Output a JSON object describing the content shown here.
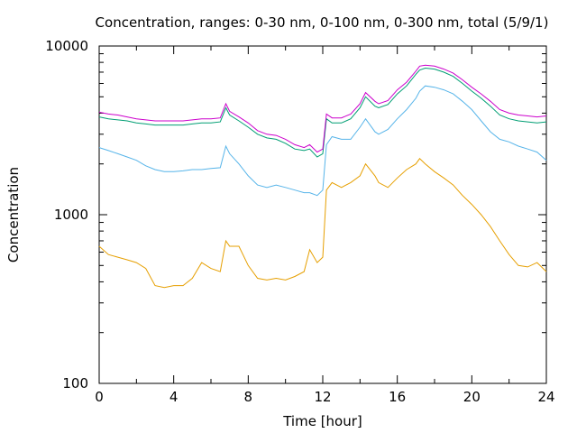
{
  "chart_data": {
    "type": "line",
    "title": "Concentration, ranges: 0-30 nm, 0-100 nm, 0-300 nm, total (5/9/1)",
    "xlabel": "Time [hour]",
    "ylabel": "Concentration",
    "xlim": [
      0,
      24
    ],
    "ylim": [
      100,
      10000
    ],
    "yscale": "log",
    "grid": false,
    "legend": "none",
    "x_ticks": [
      "0",
      "4",
      "8",
      "12",
      "16",
      "20",
      "24"
    ],
    "y_ticks": [
      "100",
      "1000",
      "10000"
    ],
    "x": [
      0,
      0.5,
      1,
      1.5,
      2,
      2.5,
      3,
      3.5,
      4,
      4.5,
      5,
      5.5,
      6,
      6.5,
      6.8,
      7,
      7.5,
      8,
      8.5,
      9,
      9.5,
      10,
      10.5,
      11,
      11.3,
      11.7,
      12,
      12.2,
      12.5,
      13,
      13.5,
      14,
      14.3,
      14.8,
      15,
      15.5,
      16,
      16.5,
      17,
      17.2,
      17.5,
      18,
      18.5,
      19,
      19.5,
      20,
      20.5,
      21,
      21.5,
      22,
      22.5,
      23,
      23.5,
      24
    ],
    "series": [
      {
        "color": "#e69f00",
        "values": [
          650,
          580,
          560,
          540,
          520,
          480,
          380,
          370,
          380,
          380,
          420,
          520,
          480,
          460,
          700,
          650,
          650,
          500,
          420,
          410,
          420,
          410,
          430,
          460,
          620,
          520,
          560,
          1400,
          1550,
          1450,
          1550,
          1700,
          2000,
          1700,
          1550,
          1450,
          1650,
          1850,
          2000,
          2150,
          2000,
          1800,
          1650,
          1500,
          1300,
          1150,
          1000,
          850,
          700,
          580,
          500,
          490,
          520,
          460
        ]
      },
      {
        "color": "#56b4e9",
        "values": [
          2500,
          2400,
          2300,
          2200,
          2100,
          1950,
          1850,
          1800,
          1800,
          1820,
          1850,
          1850,
          1880,
          1900,
          2550,
          2300,
          2000,
          1700,
          1500,
          1450,
          1500,
          1450,
          1400,
          1350,
          1350,
          1300,
          1400,
          2600,
          2900,
          2800,
          2800,
          3300,
          3700,
          3100,
          3000,
          3200,
          3700,
          4200,
          4900,
          5400,
          5800,
          5700,
          5500,
          5200,
          4700,
          4200,
          3600,
          3100,
          2800,
          2700,
          2550,
          2450,
          2350,
          2100
        ]
      },
      {
        "color": "#009e73",
        "values": [
          3800,
          3700,
          3650,
          3600,
          3500,
          3450,
          3400,
          3400,
          3400,
          3400,
          3450,
          3500,
          3500,
          3550,
          4300,
          3900,
          3600,
          3300,
          3000,
          2850,
          2800,
          2650,
          2450,
          2400,
          2450,
          2200,
          2300,
          3700,
          3500,
          3500,
          3700,
          4300,
          5000,
          4400,
          4300,
          4500,
          5200,
          5800,
          6800,
          7200,
          7400,
          7300,
          7000,
          6600,
          6000,
          5400,
          4900,
          4400,
          3900,
          3700,
          3600,
          3550,
          3500,
          3550
        ]
      },
      {
        "color": "#cc00cc",
        "values": [
          4050,
          3950,
          3900,
          3800,
          3700,
          3650,
          3600,
          3600,
          3600,
          3600,
          3650,
          3700,
          3700,
          3750,
          4550,
          4100,
          3800,
          3500,
          3150,
          3000,
          2950,
          2800,
          2600,
          2500,
          2600,
          2350,
          2450,
          3950,
          3750,
          3750,
          3950,
          4550,
          5300,
          4700,
          4550,
          4750,
          5500,
          6100,
          7100,
          7600,
          7700,
          7600,
          7300,
          6900,
          6300,
          5700,
          5200,
          4700,
          4200,
          4000,
          3900,
          3850,
          3800,
          3850
        ]
      }
    ]
  }
}
